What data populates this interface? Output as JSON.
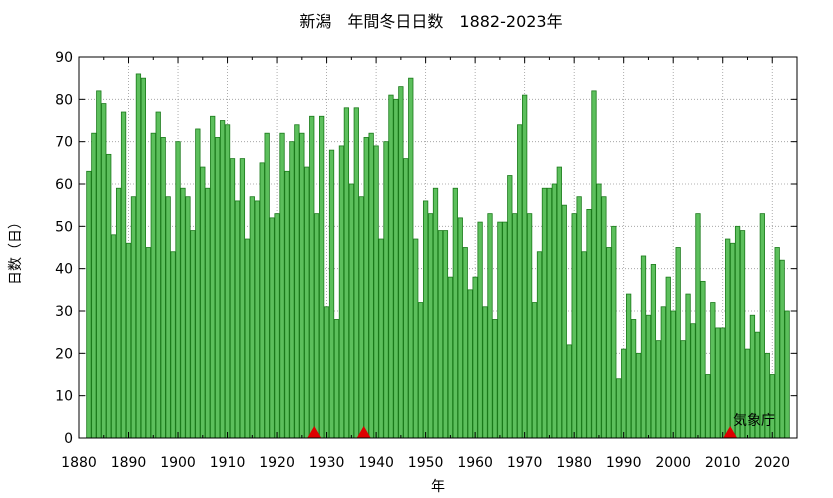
{
  "chart_data": {
    "type": "bar",
    "title": "新潟　年間冬日日数　1882-2023年",
    "xlabel": "年",
    "ylabel": "日数（日）",
    "credit": "気象庁",
    "xlim": [
      1880,
      2025
    ],
    "ylim": [
      0,
      90
    ],
    "xticks": [
      1880,
      1890,
      1900,
      1910,
      1920,
      1930,
      1940,
      1950,
      1960,
      1970,
      1980,
      1990,
      2000,
      2010,
      2020
    ],
    "yticks": [
      0,
      10,
      20,
      30,
      40,
      50,
      60,
      70,
      80,
      90
    ],
    "grid": true,
    "bar_color": "#5cbf5c",
    "bar_edge_color": "#1a7a1a",
    "marker_color": "#dd0000",
    "markers_x": [
      1927.5,
      1937.5,
      2011.5
    ],
    "x": [
      1882,
      1883,
      1884,
      1885,
      1886,
      1887,
      1888,
      1889,
      1890,
      1891,
      1892,
      1893,
      1894,
      1895,
      1896,
      1897,
      1898,
      1899,
      1900,
      1901,
      1902,
      1903,
      1904,
      1905,
      1906,
      1907,
      1908,
      1909,
      1910,
      1911,
      1912,
      1913,
      1914,
      1915,
      1916,
      1917,
      1918,
      1919,
      1920,
      1921,
      1922,
      1923,
      1924,
      1925,
      1926,
      1927,
      1928,
      1929,
      1930,
      1931,
      1932,
      1933,
      1934,
      1935,
      1936,
      1937,
      1938,
      1939,
      1940,
      1941,
      1942,
      1943,
      1944,
      1945,
      1946,
      1947,
      1948,
      1949,
      1950,
      1951,
      1952,
      1953,
      1954,
      1955,
      1956,
      1957,
      1958,
      1959,
      1960,
      1961,
      1962,
      1963,
      1964,
      1965,
      1966,
      1967,
      1968,
      1969,
      1970,
      1971,
      1972,
      1973,
      1974,
      1975,
      1976,
      1977,
      1978,
      1979,
      1980,
      1981,
      1982,
      1983,
      1984,
      1985,
      1986,
      1987,
      1988,
      1989,
      1990,
      1991,
      1992,
      1993,
      1994,
      1995,
      1996,
      1997,
      1998,
      1999,
      2000,
      2001,
      2002,
      2003,
      2004,
      2005,
      2006,
      2007,
      2008,
      2009,
      2010,
      2011,
      2012,
      2013,
      2014,
      2015,
      2016,
      2017,
      2018,
      2019,
      2020,
      2021,
      2022,
      2023
    ],
    "values": [
      63,
      72,
      82,
      79,
      67,
      48,
      59,
      77,
      46,
      57,
      86,
      85,
      45,
      72,
      77,
      71,
      57,
      44,
      70,
      59,
      57,
      49,
      73,
      64,
      59,
      76,
      71,
      75,
      74,
      66,
      56,
      66,
      47,
      57,
      56,
      65,
      72,
      52,
      53,
      72,
      63,
      70,
      74,
      72,
      64,
      76,
      53,
      76,
      31,
      68,
      28,
      69,
      78,
      60,
      78,
      57,
      71,
      72,
      69,
      47,
      70,
      81,
      80,
      83,
      66,
      85,
      47,
      32,
      56,
      53,
      59,
      49,
      49,
      38,
      59,
      52,
      45,
      35,
      38,
      51,
      31,
      53,
      28,
      51,
      51,
      62,
      53,
      74,
      81,
      53,
      32,
      44,
      59,
      59,
      60,
      64,
      55,
      22,
      53,
      57,
      44,
      54,
      82,
      60,
      57,
      45,
      50,
      14,
      21,
      34,
      28,
      20,
      43,
      29,
      41,
      23,
      31,
      38,
      30,
      45,
      23,
      34,
      27,
      53,
      37,
      15,
      32,
      26,
      26,
      47,
      46,
      50,
      49,
      21,
      29,
      25,
      53,
      20,
      15,
      45,
      42,
      30
    ]
  }
}
